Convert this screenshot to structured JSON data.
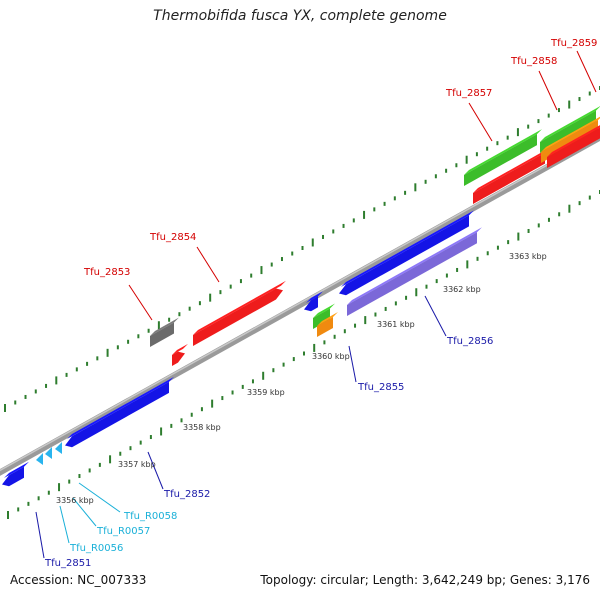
{
  "title": "Thermobifida fusca YX, complete genome",
  "accession": "Accession: NC_007333",
  "summary": "Topology: circular; Length: 3,642,249 bp; Genes: 3,176",
  "colors": {
    "backbone": "#8c8c8c",
    "tick": "#2e7d2e",
    "gene_label_red": "#d40000",
    "gene_label_blue": "#1a1aa8",
    "gene_label_cyan": "#1ab0d8",
    "cds_red": "#ee1c1c",
    "cds_blue": "#1414e6",
    "cds_lavender": "#7b68d8",
    "cds_green": "#3cbd2a",
    "cds_orange": "#f08a10",
    "cds_gray": "#6b6b6b",
    "rna_cyan": "#29b4ee"
  },
  "scale_labels": [
    "3356 kbp",
    "3357 kbp",
    "3358 kbp",
    "3359 kbp",
    "3360 kbp",
    "3361 kbp",
    "3362 kbp",
    "3363 kbp"
  ],
  "gene_labels": [
    {
      "text": "Tfu_2851",
      "color": "blue"
    },
    {
      "text": "Tfu_R0056",
      "color": "cyan"
    },
    {
      "text": "Tfu_R0057",
      "color": "cyan"
    },
    {
      "text": "Tfu_R0058",
      "color": "cyan"
    },
    {
      "text": "Tfu_2852",
      "color": "blue"
    },
    {
      "text": "Tfu_2853",
      "color": "red"
    },
    {
      "text": "Tfu_2854",
      "color": "red"
    },
    {
      "text": "Tfu_2855",
      "color": "blue"
    },
    {
      "text": "Tfu_2856",
      "color": "blue"
    },
    {
      "text": "Tfu_2857",
      "color": "red"
    },
    {
      "text": "Tfu_2858",
      "color": "red"
    },
    {
      "text": "Tfu_2859",
      "color": "red"
    }
  ]
}
